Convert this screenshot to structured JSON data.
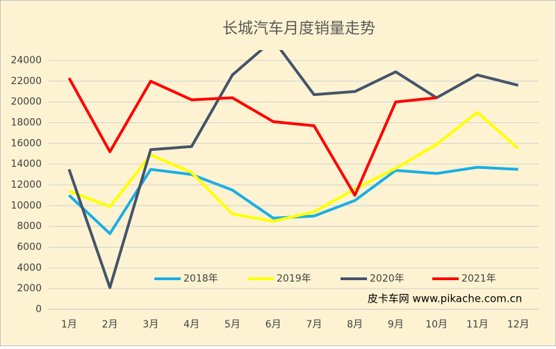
{
  "chart_data": {
    "type": "line",
    "title": "长城汽车月度销量走势",
    "categories": [
      "1月",
      "2月",
      "3月",
      "4月",
      "5月",
      "6月",
      "7月",
      "8月",
      "9月",
      "10月",
      "11月",
      "12月"
    ],
    "series": [
      {
        "name": "2018年",
        "color": "#1aaee6",
        "values": [
          11000,
          7300,
          13500,
          13000,
          11500,
          8800,
          9000,
          10500,
          13400,
          13100,
          13700,
          13500
        ]
      },
      {
        "name": "2019年",
        "color": "#ffff00",
        "values": [
          11400,
          9900,
          14900,
          13200,
          9200,
          8500,
          9400,
          11600,
          13600,
          15900,
          19000,
          15500
        ]
      },
      {
        "name": "2020年",
        "color": "#44546a",
        "values": [
          13500,
          2100,
          15400,
          15700,
          22600,
          26000,
          20700,
          21000,
          22900,
          20400,
          22600,
          21600
        ]
      },
      {
        "name": "2021年",
        "color": "#ff0000",
        "values": [
          22300,
          15200,
          22000,
          20200,
          20400,
          18100,
          17700,
          11000,
          20000,
          20400,
          null,
          null
        ]
      }
    ],
    "ylim": [
      0,
      25000
    ],
    "yticks": [
      0,
      2000,
      4000,
      6000,
      8000,
      10000,
      12000,
      14000,
      16000,
      18000,
      20000,
      22000,
      24000
    ],
    "grid": true,
    "legend": "bottom",
    "annotation": "皮卡车网  www.pikache.com.cn"
  }
}
